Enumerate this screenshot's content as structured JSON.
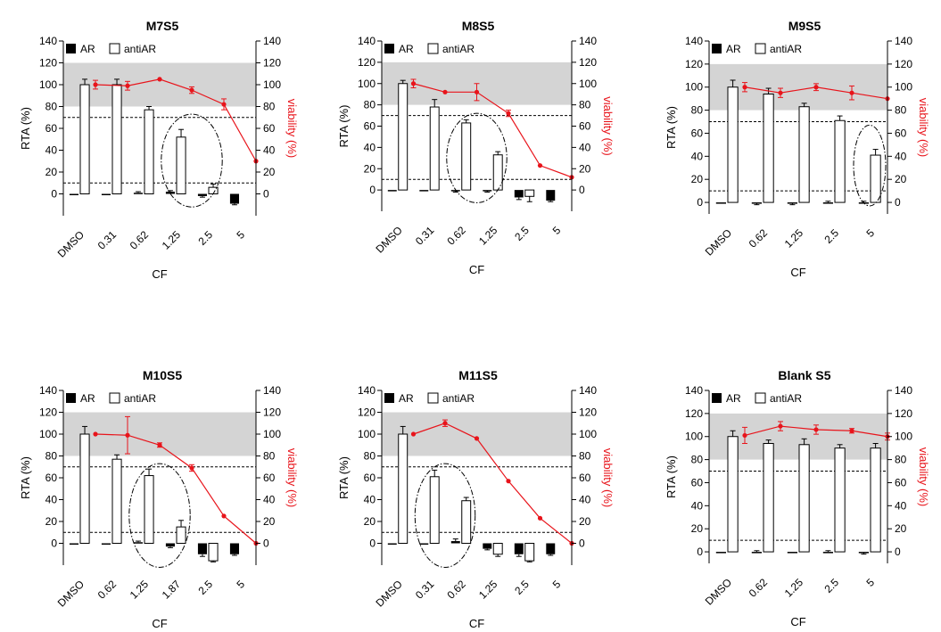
{
  "chart_data": [
    {
      "type": "bar",
      "title": "M7S5",
      "xlabel": "CF",
      "ylabel": "RTA (%)",
      "y2label": "viability (%)",
      "categories": [
        "DMSO",
        "0.31",
        "0.62",
        "1.25",
        "2.5",
        "5"
      ],
      "ylim": [
        -20,
        140
      ],
      "y2lim": [
        -20,
        140
      ],
      "yticks": [
        0,
        20,
        40,
        60,
        80,
        100,
        120,
        140
      ],
      "shaded_band": [
        80,
        120
      ],
      "threshold_lines": [
        70,
        10
      ],
      "legend": [
        "AR",
        "antiAR"
      ],
      "series": [
        {
          "name": "AR",
          "values": [
            0,
            0,
            1,
            2,
            -2,
            -9
          ],
          "errors": [
            0,
            0,
            1,
            1,
            1,
            1
          ]
        },
        {
          "name": "antiAR",
          "values": [
            100,
            100,
            77,
            52,
            6,
            null
          ],
          "errors": [
            5,
            5,
            3,
            7,
            3,
            0
          ]
        },
        {
          "name": "viability",
          "values": [
            100,
            99,
            105,
            95,
            82,
            30
          ],
          "errors": [
            4,
            4,
            0,
            3,
            5,
            0
          ]
        }
      ]
    },
    {
      "type": "bar",
      "title": "M8S5",
      "xlabel": "CF",
      "ylabel": "RTA (%)",
      "y2label": "viability (%)",
      "categories": [
        "DMSO",
        "0.31",
        "0.62",
        "1.25",
        "2.5",
        "5"
      ],
      "ylim": [
        -20,
        140
      ],
      "y2lim": [
        -20,
        140
      ],
      "yticks": [
        0,
        20,
        40,
        60,
        80,
        100,
        120,
        140
      ],
      "shaded_band": [
        80,
        120
      ],
      "threshold_lines": [
        70,
        10
      ],
      "legend": [
        "AR",
        "antiAR"
      ],
      "series": [
        {
          "name": "AR",
          "values": [
            0,
            0,
            -1,
            -1,
            -7,
            -10
          ],
          "errors": [
            0,
            0,
            1,
            1,
            2,
            1
          ]
        },
        {
          "name": "antiAR",
          "values": [
            100,
            78,
            63,
            33,
            -6,
            null
          ],
          "errors": [
            3,
            7,
            3,
            3,
            5,
            0
          ]
        },
        {
          "name": "viability",
          "values": [
            100,
            92,
            92,
            72,
            23,
            12
          ],
          "errors": [
            4,
            0,
            8,
            3,
            0,
            0
          ]
        }
      ]
    },
    {
      "type": "bar",
      "title": "M9S5",
      "xlabel": "CF",
      "ylabel": "RTA (%)",
      "y2label": "viability (%)",
      "categories": [
        "DMSO",
        "0.62",
        "1.25",
        "2.5",
        "5"
      ],
      "ylim": [
        -10,
        140
      ],
      "y2lim": [
        -10,
        140
      ],
      "yticks": [
        0,
        20,
        40,
        60,
        80,
        100,
        120,
        140
      ],
      "shaded_band": [
        80,
        120
      ],
      "threshold_lines": [
        70,
        10
      ],
      "legend": [
        "AR",
        "antiAR"
      ],
      "series": [
        {
          "name": "AR",
          "values": [
            0,
            -1,
            -1,
            0,
            0
          ],
          "errors": [
            0,
            1,
            1,
            1,
            1
          ]
        },
        {
          "name": "antiAR",
          "values": [
            100,
            94,
            83,
            71,
            41
          ],
          "errors": [
            6,
            5,
            3,
            4,
            5
          ]
        },
        {
          "name": "viability",
          "values": [
            100,
            95,
            100,
            95,
            90
          ],
          "errors": [
            4,
            4,
            3,
            6,
            0
          ]
        }
      ]
    },
    {
      "type": "bar",
      "title": "M10S5",
      "xlabel": "CF",
      "ylabel": "RTA (%)",
      "y2label": "viability (%)",
      "categories": [
        "DMSO",
        "0.62",
        "1.25",
        "1.87",
        "2.5",
        "5"
      ],
      "ylim": [
        -20,
        140
      ],
      "y2lim": [
        -20,
        140
      ],
      "yticks": [
        0,
        20,
        40,
        60,
        80,
        100,
        120,
        140
      ],
      "shaded_band": [
        80,
        120
      ],
      "threshold_lines": [
        70,
        10
      ],
      "legend": [
        "AR",
        "antiAR"
      ],
      "series": [
        {
          "name": "AR",
          "values": [
            0,
            0,
            1,
            -3,
            -10,
            -10
          ],
          "errors": [
            0,
            0,
            1,
            1,
            2,
            1
          ]
        },
        {
          "name": "antiAR",
          "values": [
            100,
            77,
            62,
            15,
            -16,
            null
          ],
          "errors": [
            7,
            4,
            6,
            6,
            1,
            0
          ]
        },
        {
          "name": "viability",
          "values": [
            100,
            99,
            90,
            69,
            25,
            0
          ],
          "errors": [
            0,
            17,
            2,
            3,
            0,
            0
          ]
        }
      ]
    },
    {
      "type": "bar",
      "title": "M11S5",
      "xlabel": "CF",
      "ylabel": "RTA (%)",
      "y2label": "viability (%)",
      "categories": [
        "DMSO",
        "0.31",
        "0.62",
        "1.25",
        "2.5",
        "5"
      ],
      "ylim": [
        -20,
        140
      ],
      "y2lim": [
        -20,
        140
      ],
      "yticks": [
        0,
        20,
        40,
        60,
        80,
        100,
        120,
        140
      ],
      "shaded_band": [
        80,
        120
      ],
      "threshold_lines": [
        70,
        10
      ],
      "legend": [
        "AR",
        "antiAR"
      ],
      "series": [
        {
          "name": "AR",
          "values": [
            0,
            0,
            2,
            -5,
            -10,
            -10
          ],
          "errors": [
            0,
            0,
            2,
            1,
            2,
            1
          ]
        },
        {
          "name": "antiAR",
          "values": [
            100,
            61,
            39,
            -10,
            -16,
            null
          ],
          "errors": [
            7,
            6,
            3,
            2,
            1,
            0
          ]
        },
        {
          "name": "viability",
          "values": [
            100,
            110,
            96,
            57,
            23,
            0
          ],
          "errors": [
            0,
            3,
            0,
            0,
            0,
            0
          ]
        }
      ]
    },
    {
      "type": "bar",
      "title": "Blank S5",
      "xlabel": "CF",
      "ylabel": "RTA (%)",
      "y2label": "viability (%)",
      "categories": [
        "DMSO",
        "0.62",
        "1.25",
        "2.5",
        "5"
      ],
      "ylim": [
        -10,
        140
      ],
      "y2lim": [
        -10,
        140
      ],
      "yticks": [
        0,
        20,
        40,
        60,
        80,
        100,
        120,
        140
      ],
      "shaded_band": [
        80,
        120
      ],
      "threshold_lines": [
        70,
        10
      ],
      "legend": [
        "AR",
        "antiAR"
      ],
      "series": [
        {
          "name": "AR",
          "values": [
            0,
            0,
            0,
            0,
            -1
          ],
          "errors": [
            0,
            1,
            0,
            1,
            1
          ]
        },
        {
          "name": "antiAR",
          "values": [
            100,
            94,
            93,
            90,
            90
          ],
          "errors": [
            5,
            3,
            5,
            3,
            4
          ]
        },
        {
          "name": "viability",
          "values": [
            101,
            109,
            106,
            105,
            100
          ],
          "errors": [
            7,
            4,
            4,
            2,
            3
          ]
        }
      ]
    }
  ]
}
